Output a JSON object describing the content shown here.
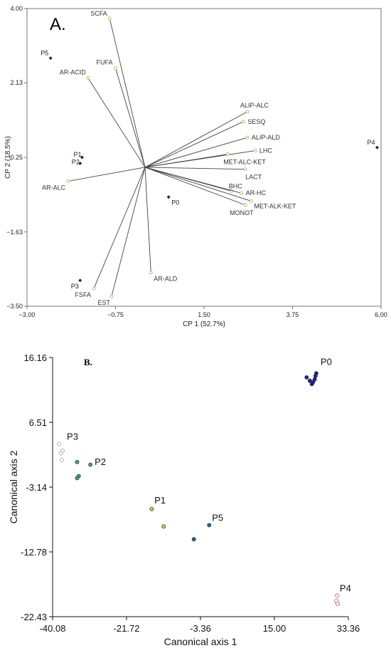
{
  "chart_data": [
    {
      "type": "scatter",
      "subtype": "biplot",
      "panel_label": "A.",
      "xlabel": "CP 1 (52.7%)",
      "ylabel": "CP 2 (18.5%)",
      "xlim": [
        -3.0,
        6.0
      ],
      "ylim": [
        -3.5,
        4.0
      ],
      "xticks": [
        "−3.00",
        "−0.75",
        "1.50",
        "3.75",
        "6.00"
      ],
      "yticks": [
        "−3.50",
        "−1.63",
        "0.25",
        "2.13",
        "4.00"
      ],
      "origin": [
        0.0,
        0.0
      ],
      "vectors": [
        {
          "label": "SCFA",
          "x": -0.9,
          "y": 3.75
        },
        {
          "label": "FUFA",
          "x": -0.75,
          "y": 2.5
        },
        {
          "label": "AR-ACID",
          "x": -1.45,
          "y": 2.25
        },
        {
          "label": "ALIP-ALC",
          "x": 2.6,
          "y": 1.4
        },
        {
          "label": "SESQ",
          "x": 2.5,
          "y": 1.15
        },
        {
          "label": "ALIP-ALD",
          "x": 2.6,
          "y": 0.75
        },
        {
          "label": "LHC",
          "x": 2.8,
          "y": 0.42
        },
        {
          "label": "MET-ALC-KET",
          "x": 2.1,
          "y": 0.33
        },
        {
          "label": "LACT",
          "x": 2.55,
          "y": -0.05
        },
        {
          "label": "BHC",
          "x": 2.2,
          "y": -0.6
        },
        {
          "label": "AR-HC",
          "x": 2.45,
          "y": -0.65
        },
        {
          "label": "MET-ALK-KET",
          "x": 2.7,
          "y": -0.85
        },
        {
          "label": "MONOT",
          "x": 2.55,
          "y": -0.95
        },
        {
          "label": "AR-ALC",
          "x": -1.95,
          "y": -0.35
        },
        {
          "label": "AR-ALD",
          "x": 0.15,
          "y": -2.65
        },
        {
          "label": "FSFA",
          "x": -1.3,
          "y": -3.05
        },
        {
          "label": "EST",
          "x": -0.85,
          "y": -3.25
        }
      ],
      "points": [
        {
          "label": "P5",
          "x": -2.4,
          "y": 2.75
        },
        {
          "label": "P1",
          "x": -1.6,
          "y": 0.25
        },
        {
          "label": "P2",
          "x": -1.65,
          "y": 0.1
        },
        {
          "label": "P0",
          "x": 0.6,
          "y": -0.75
        },
        {
          "label": "P3",
          "x": -1.65,
          "y": -2.85
        },
        {
          "label": "P4",
          "x": 5.9,
          "y": 0.5
        }
      ],
      "colors": {
        "vector": "#444444",
        "vector_marker": "#c8b24a",
        "point": "#1a1a7a"
      }
    },
    {
      "type": "scatter",
      "panel_label": "B.",
      "xlabel": "Canonical axis 1",
      "ylabel": "Canonical axis 2",
      "xlim": [
        -40.08,
        33.36
      ],
      "ylim": [
        -22.43,
        16.16
      ],
      "xticks": [
        "-40.08",
        "-21.72",
        "-3.36",
        "15.00",
        "33.36"
      ],
      "yticks": [
        "16.16",
        "6.51",
        "-3.14",
        "-12.78",
        "-22.43"
      ],
      "groups": [
        {
          "label": "P0",
          "color": "#1f1fa3",
          "fill": true,
          "points": [
            [
              23.0,
              13.2
            ],
            [
              23.8,
              12.7
            ],
            [
              24.6,
              12.5
            ],
            [
              25.0,
              12.9
            ],
            [
              25.2,
              13.4
            ],
            [
              25.4,
              13.8
            ],
            [
              24.3,
              12.2
            ]
          ]
        },
        {
          "label": "P3",
          "color": "#9a9a9a",
          "fill": false,
          "points": [
            [
              -38.5,
              3.3
            ],
            [
              -37.6,
              2.3
            ],
            [
              -38.0,
              1.9
            ],
            [
              -37.8,
              0.9
            ]
          ]
        },
        {
          "label": "P2",
          "color": "#2fb35a",
          "fill": true,
          "points": [
            [
              -34.0,
              0.6
            ],
            [
              -30.7,
              0.2
            ],
            [
              -33.6,
              -1.5
            ],
            [
              -34.0,
              -1.8
            ]
          ]
        },
        {
          "label": "P1",
          "color": "#c8c85a",
          "fill": true,
          "points": [
            [
              -15.5,
              -6.4
            ],
            [
              -12.5,
              -9.0
            ]
          ]
        },
        {
          "label": "P5",
          "color": "#1f6a9a",
          "fill": true,
          "points": [
            [
              -1.2,
              -8.8
            ],
            [
              -5.0,
              -10.9
            ]
          ]
        },
        {
          "label": "P4",
          "color": "#c23a3a",
          "fill": false,
          "points": [
            [
              30.6,
              -19.3
            ],
            [
              30.4,
              -20.1
            ],
            [
              30.7,
              -20.5
            ]
          ]
        }
      ]
    }
  ]
}
